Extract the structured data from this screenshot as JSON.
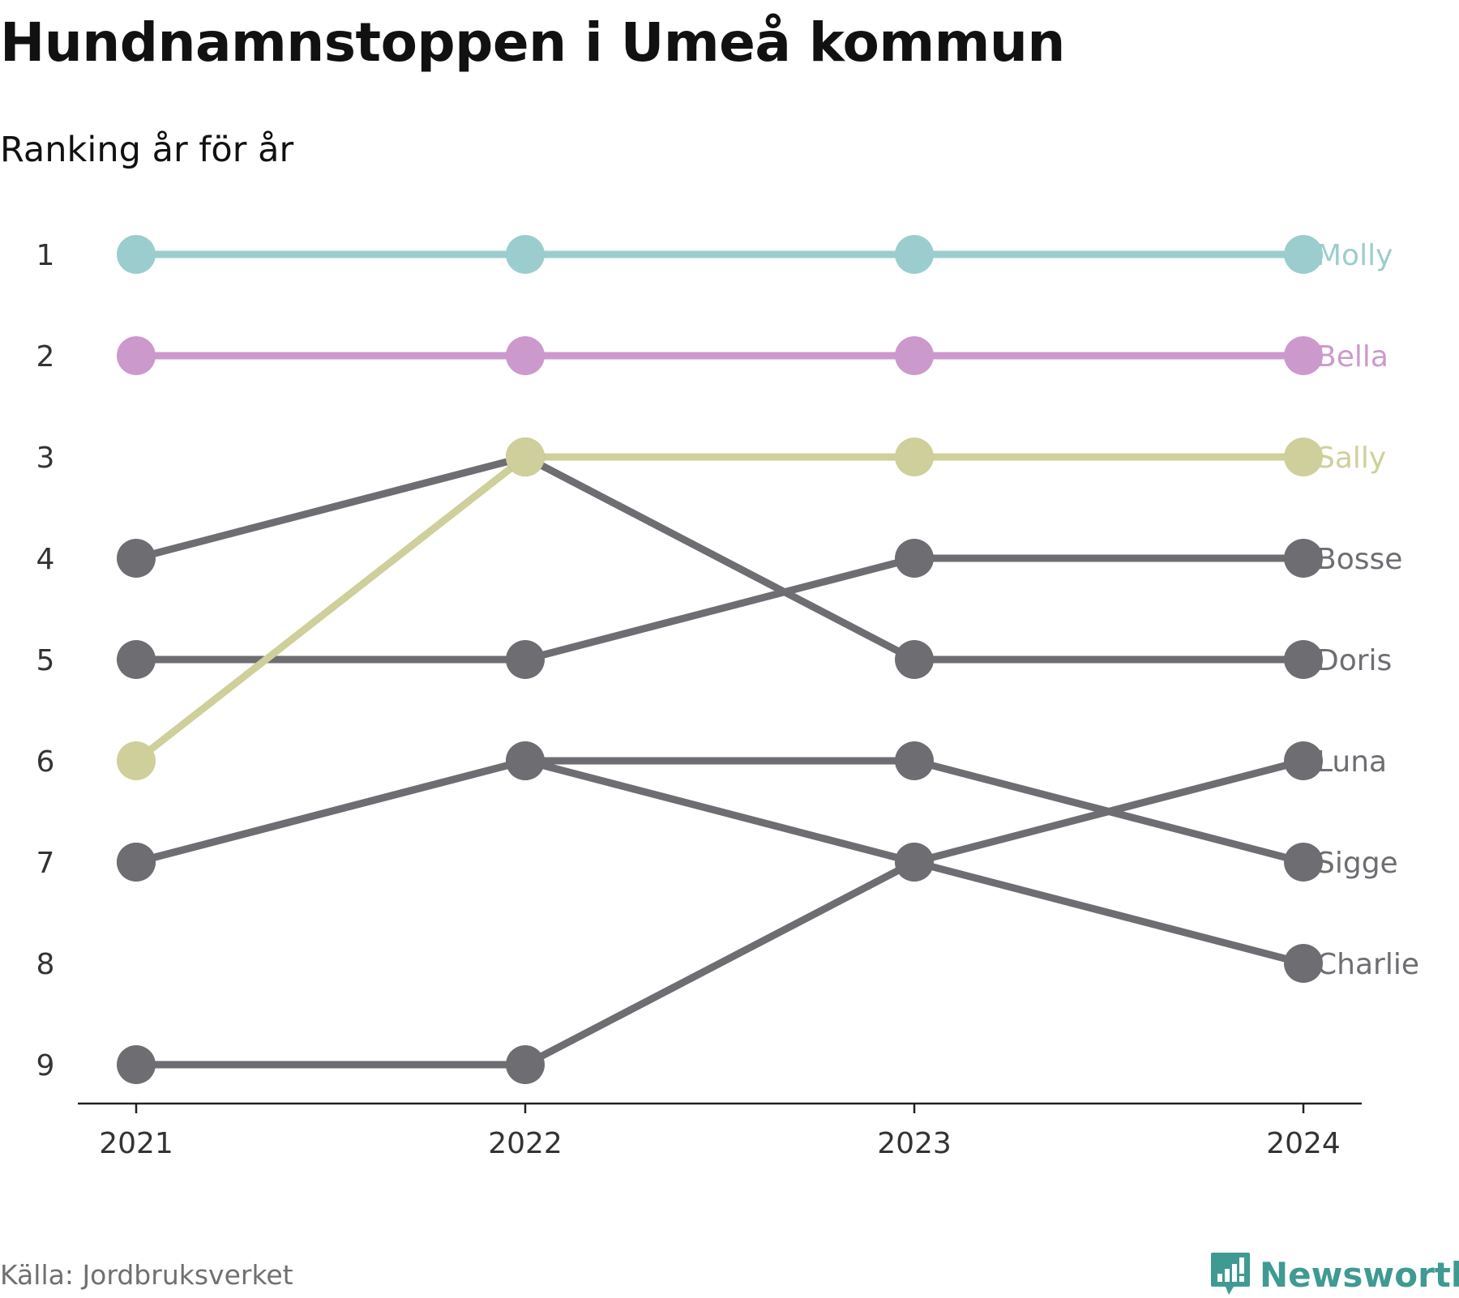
{
  "title": "Hundnamnstoppen i Umeå kommun",
  "subtitle": "Ranking år för år",
  "source": "Källa: Jordbruksverket",
  "brand": "Newsworthy",
  "chart_data": {
    "type": "line",
    "x": [
      "2021",
      "2022",
      "2023",
      "2024"
    ],
    "y_ticks": [
      "1",
      "2",
      "3",
      "4",
      "5",
      "6",
      "7",
      "8",
      "9"
    ],
    "ylim": [
      1,
      9
    ],
    "y_inverted": true,
    "grid": false,
    "legend": "labels at line ends (right)",
    "series": [
      {
        "name": "Molly",
        "values": [
          1,
          1,
          1,
          1
        ],
        "color": "#9ccdce",
        "highlight": true
      },
      {
        "name": "Bella",
        "values": [
          2,
          2,
          2,
          2
        ],
        "color": "#cc99cc",
        "highlight": true
      },
      {
        "name": "Sally",
        "values": [
          6,
          3,
          3,
          3
        ],
        "color": "#cfcf9b",
        "highlight": true
      },
      {
        "name": "Bosse",
        "values": [
          5,
          5,
          4,
          4
        ],
        "color": "#6e6d72",
        "highlight": false
      },
      {
        "name": "Doris",
        "values": [
          4,
          3,
          5,
          5
        ],
        "color": "#6e6d72",
        "highlight": false
      },
      {
        "name": "Luna",
        "values": [
          9,
          9,
          7,
          6
        ],
        "color": "#6e6d72",
        "highlight": false
      },
      {
        "name": "Sigge",
        "values": [
          7,
          6,
          6,
          7
        ],
        "color": "#6e6d72",
        "highlight": false
      },
      {
        "name": "Charlie",
        "values": [
          7,
          6,
          7,
          8
        ],
        "color": "#6e6d72",
        "highlight": false
      }
    ]
  }
}
